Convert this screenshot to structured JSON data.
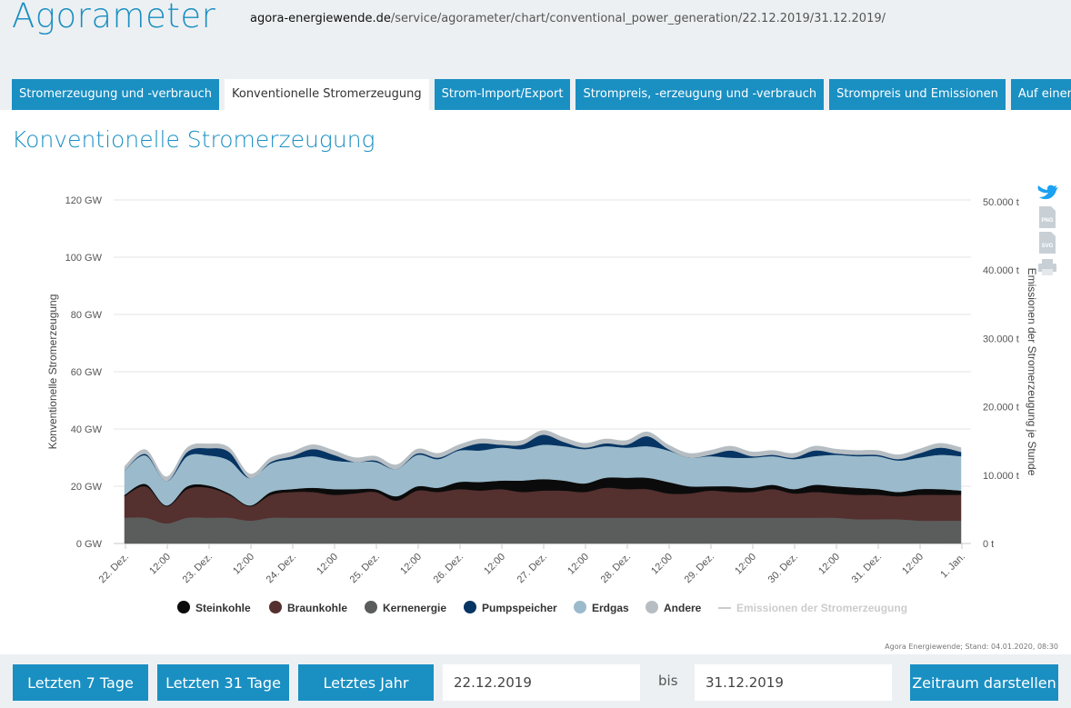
{
  "header": {
    "brand": "Agorameter",
    "url_domain": "agora-energiewende.de",
    "url_path": "/service/agorameter/chart/conventional_power_generation/22.12.2019/31.12.2019/"
  },
  "tabs": [
    {
      "label": "Stromerzeugung und -verbrauch",
      "active": false
    },
    {
      "label": "Konventionelle Stromerzeugung",
      "active": true
    },
    {
      "label": "Strom-Import/Export",
      "active": false
    },
    {
      "label": "Strompreis, -erzeugung und -verbrauch",
      "active": false
    },
    {
      "label": "Strompreis und Emissionen",
      "active": false
    },
    {
      "label": "Auf einen Blick",
      "active": false
    }
  ],
  "page_title": "Konventionelle Stromerzeugung",
  "credit": "Agora Energiewende; Stand: 04.01.2020, 08:30",
  "export_icons": [
    "twitter-icon",
    "png-download-icon",
    "svg-download-icon",
    "print-icon"
  ],
  "export_labels": {
    "png": "PNG",
    "svg": "SVG"
  },
  "chart_data": {
    "type": "area",
    "stacked": true,
    "ylabel": "Konventionelle Stromerzeugung",
    "ylabel_right": "Emissionen der Stromerzeugung je Stunde",
    "ylim": [
      0,
      120
    ],
    "ylim_right": [
      0,
      50000
    ],
    "yticks": [
      "0 GW",
      "20 GW",
      "40 GW",
      "60 GW",
      "80 GW",
      "100 GW",
      "120 GW"
    ],
    "yticks_right": [
      "0 t",
      "10.000 t",
      "20.000 t",
      "30.000 t",
      "40.000 t",
      "50.000 t"
    ],
    "xticks": [
      "22. Dez.",
      "12:00",
      "23. Dez.",
      "12:00",
      "24. Dez.",
      "12:00",
      "25. Dez.",
      "12:00",
      "26. Dez.",
      "12:00",
      "27. Dez.",
      "12:00",
      "28. Dez.",
      "12:00",
      "29. Dez.",
      "12:00",
      "30. Dez.",
      "12:00",
      "31. Dez.",
      "12:00",
      "1. Jan."
    ],
    "x_hours": [
      0,
      6,
      12,
      18,
      24,
      30,
      36,
      42,
      48,
      54,
      60,
      66,
      72,
      78,
      84,
      90,
      96,
      102,
      108,
      114,
      120,
      126,
      132,
      138,
      144,
      150,
      156,
      162,
      168,
      174,
      180,
      186,
      192,
      198,
      204,
      210,
      216,
      222,
      228,
      234,
      240
    ],
    "series": [
      {
        "name": "Kernenergie",
        "color": "#5b5d5d",
        "values": [
          9,
          9,
          7,
          9,
          9,
          9,
          8,
          9,
          9,
          9,
          9,
          9,
          9,
          9,
          9,
          9,
          9,
          9,
          9,
          9,
          9,
          9,
          9,
          9,
          9,
          9,
          9,
          9,
          9,
          9,
          9,
          9,
          9,
          9,
          9,
          8.5,
          8.5,
          8.5,
          8,
          8,
          8
        ]
      },
      {
        "name": "Braunkohle",
        "color": "#54302f",
        "values": [
          7.5,
          11,
          6,
          10,
          10.5,
          8,
          5,
          8,
          9,
          9,
          8,
          8.5,
          9,
          6,
          9.5,
          9,
          10,
          9.5,
          10,
          9,
          9.5,
          9.5,
          9,
          10.5,
          10,
          10,
          8.5,
          8.5,
          9.5,
          9,
          9,
          10,
          8.5,
          9,
          8.5,
          8.5,
          8.5,
          8,
          9,
          9,
          9
        ]
      },
      {
        "name": "Steinkohle",
        "color": "#0b0b0b",
        "values": [
          0.5,
          0.8,
          0.3,
          1,
          0.8,
          0.5,
          0.3,
          1,
          1,
          1.5,
          2,
          1.5,
          1,
          1.5,
          1.5,
          1.5,
          2.5,
          3,
          3,
          4,
          4,
          3.5,
          3,
          3.5,
          4,
          4,
          4,
          2.5,
          1.5,
          2,
          1.5,
          1.5,
          1.5,
          2.5,
          2.5,
          2.5,
          2,
          1.5,
          2,
          2,
          1.5
        ]
      },
      {
        "name": "Erdgas",
        "color": "#9bbbcc",
        "values": [
          8.5,
          10,
          8.5,
          10.5,
          10.5,
          11.5,
          9.5,
          10,
          10.5,
          11,
          10,
          9.5,
          9.5,
          9.5,
          11,
          10,
          11,
          11,
          11.5,
          11,
          12,
          12,
          12,
          11,
          10.5,
          11,
          11,
          10,
          10.5,
          10,
          10.5,
          10,
          10.5,
          10,
          11,
          11,
          11.5,
          11,
          11,
          12,
          12
        ]
      },
      {
        "name": "Pumpspeicher",
        "color": "#063564",
        "values": [
          0,
          0.5,
          0,
          1.5,
          2.5,
          3,
          0,
          0.5,
          1,
          2.5,
          2,
          0,
          0.5,
          0,
          0.5,
          0.5,
          0.5,
          2.5,
          1,
          1.5,
          3.5,
          1.5,
          0.5,
          1,
          1,
          3.5,
          0.5,
          0,
          0.5,
          2.5,
          0.5,
          0.5,
          0.5,
          2,
          0.5,
          0.5,
          0.5,
          0.5,
          1.5,
          2.5,
          1.5
        ]
      },
      {
        "name": "Andere",
        "color": "#b6bec3",
        "values": [
          1.5,
          1.5,
          1.5,
          1.5,
          1.5,
          1.5,
          1.5,
          1.5,
          1.5,
          1.5,
          1.5,
          1.5,
          1.5,
          1.5,
          1.5,
          1.5,
          1.5,
          1.5,
          1.5,
          1.5,
          1.5,
          1.5,
          1.5,
          1.5,
          1.5,
          1.5,
          1.5,
          1.5,
          1.5,
          1.5,
          1.5,
          1.5,
          1.5,
          1.5,
          1.5,
          1.5,
          1.5,
          1.5,
          1.5,
          1.5,
          1.5
        ]
      }
    ],
    "legend": [
      {
        "name": "Steinkohle",
        "color": "#0b0b0b",
        "enabled": true
      },
      {
        "name": "Braunkohle",
        "color": "#54302f",
        "enabled": true
      },
      {
        "name": "Kernenergie",
        "color": "#5b5d5d",
        "enabled": true
      },
      {
        "name": "Pumpspeicher",
        "color": "#063564",
        "enabled": true
      },
      {
        "name": "Erdgas",
        "color": "#9bbbcc",
        "enabled": true
      },
      {
        "name": "Andere",
        "color": "#b6bec3",
        "enabled": true
      },
      {
        "name": "Emissionen der Stromerzeugung",
        "color": "#cccccc",
        "enabled": false,
        "line": true
      }
    ],
    "grid": true,
    "legend_position": "bottom-center"
  },
  "footer": {
    "btn_7": "Letzten 7 Tage",
    "btn_31": "Letzten 31 Tage",
    "btn_year": "Letztes Jahr",
    "date_from": "22.12.2019",
    "bis": "bis",
    "date_to": "31.12.2019",
    "btn_show": "Zeitraum darstellen"
  }
}
